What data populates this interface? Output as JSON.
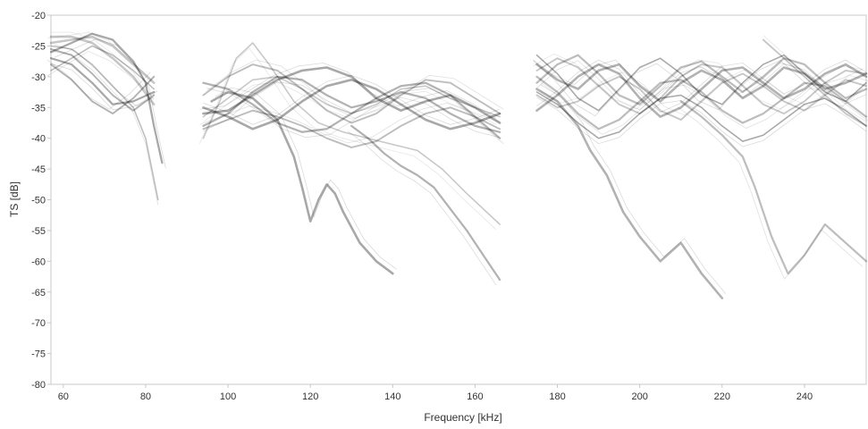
{
  "chart_data": {
    "type": "line",
    "xlabel": "Frequency [kHz]",
    "ylabel": "TS [dB]",
    "xlim": [
      57,
      255
    ],
    "ylim": [
      -80,
      -20
    ],
    "x_ticks": [
      60,
      80,
      100,
      120,
      140,
      160,
      180,
      200,
      220,
      240
    ],
    "y_ticks": [
      -80,
      -75,
      -70,
      -65,
      -60,
      -55,
      -50,
      -45,
      -40,
      -35,
      -30,
      -25,
      -20
    ],
    "x_tick_labels": [
      "60",
      "80",
      "100",
      "120",
      "140",
      "160",
      "180",
      "200",
      "220",
      "240"
    ],
    "y_tick_labels": [
      "-80",
      "-75",
      "-70",
      "-65",
      "-60",
      "-55",
      "-50",
      "-45",
      "-40",
      "-35",
      "-30",
      "-25",
      "-20"
    ],
    "grid": false,
    "colors": {
      "axis": "#c8c8c8",
      "text": "#333333",
      "series": "#000000"
    },
    "bands": [
      {
        "x_range": [
          57,
          84
        ],
        "series": [
          {
            "x": [
              57,
              62,
              67,
              72,
              77,
              82
            ],
            "y": [
              -24.5,
              -24.0,
              -23.5,
              -25.0,
              -28.0,
              -31.0
            ]
          },
          {
            "x": [
              57,
              62,
              67,
              72,
              77,
              82
            ],
            "y": [
              -27.0,
              -28.0,
              -31.0,
              -34.5,
              -34.0,
              -32.5
            ]
          },
          {
            "x": [
              57,
              62,
              67,
              72,
              77,
              82
            ],
            "y": [
              -25.5,
              -26.5,
              -29.5,
              -33.0,
              -35.5,
              -33.0
            ]
          },
          {
            "x": [
              57,
              62,
              67,
              72,
              77,
              82
            ],
            "y": [
              -29.0,
              -27.0,
              -25.0,
              -26.5,
              -29.0,
              -32.0
            ]
          },
          {
            "x": [
              57,
              62,
              67,
              72,
              77,
              82
            ],
            "y": [
              -23.5,
              -23.5,
              -24.5,
              -27.0,
              -30.0,
              -34.5
            ]
          },
          {
            "x": [
              57,
              62,
              67,
              72,
              77,
              80,
              82,
              84
            ],
            "y": [
              -26.0,
              -24.5,
              -23.0,
              -24.0,
              -27.5,
              -31.0,
              -38.0,
              -44.0
            ]
          },
          {
            "x": [
              57,
              62,
              67,
              72,
              77,
              82
            ],
            "y": [
              -28.0,
              -30.5,
              -34.0,
              -36.0,
              -33.5,
              -30.0
            ]
          },
          {
            "x": [
              57,
              62,
              67,
              72,
              77,
              80,
              83
            ],
            "y": [
              -25.0,
              -25.5,
              -28.0,
              -31.5,
              -35.0,
              -40.0,
              -50.0
            ]
          }
        ]
      },
      {
        "x_range": [
          94,
          166
        ],
        "series": [
          {
            "x": [
              94,
              100,
              106,
              112,
              118,
              124,
              130,
              136,
              142,
              148,
              154,
              160,
              166
            ],
            "y": [
              -36.0,
              -35.5,
              -33.0,
              -30.5,
              -29.0,
              -28.5,
              -30.0,
              -33.5,
              -35.5,
              -34.0,
              -33.0,
              -35.0,
              -37.5
            ]
          },
          {
            "x": [
              94,
              100,
              106,
              112,
              118,
              124,
              130,
              136,
              142,
              148,
              154,
              160,
              166
            ],
            "y": [
              -38.0,
              -36.0,
              -32.5,
              -30.0,
              -30.5,
              -33.0,
              -35.0,
              -34.0,
              -32.5,
              -33.5,
              -36.0,
              -38.0,
              -39.0
            ]
          },
          {
            "x": [
              94,
              100,
              106,
              112,
              118,
              124,
              130,
              136,
              142,
              148,
              154,
              160,
              166
            ],
            "y": [
              -33.0,
              -30.0,
              -28.0,
              -29.0,
              -32.0,
              -35.5,
              -37.5,
              -36.0,
              -33.0,
              -30.5,
              -31.0,
              -33.5,
              -36.0
            ]
          },
          {
            "x": [
              94,
              98,
              102,
              106,
              110,
              116,
              122,
              128,
              134,
              140,
              146,
              152,
              158,
              166
            ],
            "y": [
              -40.0,
              -34.0,
              -27.0,
              -24.5,
              -28.0,
              -34.0,
              -37.5,
              -39.0,
              -40.0,
              -41.0,
              -42.0,
              -45.0,
              -49.0,
              -54.0
            ]
          },
          {
            "x": [
              94,
              100,
              106,
              112,
              118,
              124,
              130,
              136,
              142,
              148,
              154,
              160,
              166
            ],
            "y": [
              -35.0,
              -36.5,
              -38.5,
              -37.0,
              -34.0,
              -31.5,
              -30.5,
              -32.0,
              -34.5,
              -37.0,
              -38.5,
              -37.5,
              -36.0
            ]
          },
          {
            "x": [
              94,
              100,
              106,
              112,
              118,
              124,
              130,
              136,
              142,
              148,
              154,
              160,
              166
            ],
            "y": [
              -31.0,
              -32.0,
              -34.5,
              -37.5,
              -39.0,
              -38.5,
              -36.0,
              -33.5,
              -31.5,
              -31.0,
              -33.0,
              -36.5,
              -40.0
            ]
          },
          {
            "x": [
              94,
              100,
              106,
              112,
              118,
              124,
              130,
              136,
              142,
              148,
              154,
              160,
              166
            ],
            "y": [
              -38.5,
              -37.0,
              -35.5,
              -36.5,
              -38.0,
              -40.0,
              -41.5,
              -40.5,
              -38.0,
              -36.0,
              -35.0,
              -36.5,
              -38.5
            ]
          },
          {
            "x": [
              94,
              100,
              106,
              112,
              118,
              124,
              130,
              136,
              142,
              148,
              154,
              160,
              166
            ],
            "y": [
              -36.5,
              -33.5,
              -30.5,
              -30.0,
              -32.0,
              -34.5,
              -36.0,
              -34.5,
              -32.0,
              -31.5,
              -33.5,
              -35.0,
              -36.5
            ]
          },
          {
            "x": [
              96,
              100,
              106,
              112,
              116,
              118,
              120,
              122,
              124,
              126,
              128,
              132,
              136,
              140
            ],
            "y": [
              -34.0,
              -32.5,
              -33.5,
              -37.0,
              -43.0,
              -48.0,
              -53.5,
              -50.0,
              -47.5,
              -49.0,
              -52.0,
              -57.0,
              -60.0,
              -62.0
            ]
          },
          {
            "x": [
              130,
              134,
              138,
              142,
              146,
              150,
              154,
              158,
              162,
              166
            ],
            "y": [
              -38.0,
              -40.0,
              -42.5,
              -44.5,
              -46.0,
              -48.0,
              -51.5,
              -55.0,
              -59.0,
              -63.0
            ]
          }
        ]
      },
      {
        "x_range": [
          175,
          255
        ],
        "series": [
          {
            "x": [
              175,
              180,
              185,
              190,
              195,
              200,
              205,
              210,
              215,
              220,
              225,
              230,
              235,
              240,
              245,
              250,
              255
            ],
            "y": [
              -28.0,
              -30.5,
              -32.0,
              -29.0,
              -28.0,
              -31.5,
              -34.0,
              -31.0,
              -29.0,
              -30.5,
              -33.5,
              -31.5,
              -28.5,
              -29.5,
              -32.0,
              -31.0,
              -29.5
            ]
          },
          {
            "x": [
              175,
              180,
              185,
              190,
              195,
              200,
              205,
              210,
              215,
              220,
              225,
              230,
              235,
              240,
              245,
              250,
              255
            ],
            "y": [
              -31.0,
              -28.0,
              -26.5,
              -29.5,
              -33.0,
              -34.5,
              -31.5,
              -28.5,
              -27.5,
              -30.0,
              -32.5,
              -30.0,
              -27.0,
              -28.0,
              -31.0,
              -33.5,
              -32.0
            ]
          },
          {
            "x": [
              175,
              180,
              185,
              190,
              195,
              200,
              205,
              210,
              215,
              220,
              225,
              230,
              235,
              240,
              245,
              250,
              255
            ],
            "y": [
              -33.0,
              -35.0,
              -34.0,
              -31.5,
              -30.0,
              -32.0,
              -35.5,
              -37.0,
              -34.0,
              -31.0,
              -29.5,
              -31.5,
              -34.0,
              -35.5,
              -33.0,
              -30.5,
              -31.5
            ]
          },
          {
            "x": [
              175,
              180,
              185,
              190,
              195,
              200,
              205,
              210,
              215,
              220,
              225,
              230,
              235,
              240,
              245,
              250,
              255
            ],
            "y": [
              -26.5,
              -29.5,
              -33.5,
              -35.5,
              -32.0,
              -28.5,
              -27.0,
              -29.5,
              -33.0,
              -34.5,
              -31.0,
              -28.0,
              -26.5,
              -29.5,
              -32.5,
              -34.0,
              -31.0
            ]
          },
          {
            "x": [
              175,
              180,
              185,
              190,
              195,
              200,
              205,
              210,
              215,
              220,
              225,
              230,
              235,
              240,
              245,
              250,
              255
            ],
            "y": [
              -35.5,
              -33.0,
              -30.0,
              -28.0,
              -29.5,
              -33.5,
              -36.5,
              -35.0,
              -32.0,
              -29.0,
              -28.5,
              -31.0,
              -33.5,
              -32.0,
              -29.5,
              -28.0,
              -30.0
            ]
          },
          {
            "x": [
              175,
              180,
              185,
              190,
              195,
              200,
              205,
              210,
              215,
              220,
              225,
              230,
              235,
              240,
              245,
              250,
              255
            ],
            "y": [
              -30.0,
              -32.5,
              -36.0,
              -38.5,
              -37.0,
              -34.0,
              -31.0,
              -30.5,
              -32.5,
              -35.5,
              -37.5,
              -36.0,
              -33.5,
              -31.0,
              -31.5,
              -34.0,
              -36.5
            ]
          },
          {
            "x": [
              175,
              180,
              185,
              190,
              195,
              200,
              205,
              210,
              215,
              220,
              225,
              230,
              235,
              240,
              245,
              250,
              255
            ],
            "y": [
              -29.0,
              -27.0,
              -28.5,
              -31.5,
              -34.5,
              -36.0,
              -33.5,
              -30.0,
              -28.0,
              -28.5,
              -31.5,
              -34.5,
              -36.0,
              -34.0,
              -31.0,
              -29.0,
              -29.5
            ]
          },
          {
            "x": [
              175,
              180,
              185,
              190,
              195,
              200,
              205,
              210,
              215,
              220,
              225,
              230,
              235,
              240,
              245,
              250,
              255
            ],
            "y": [
              -32.5,
              -34.5,
              -37.5,
              -40.0,
              -39.0,
              -36.0,
              -33.5,
              -33.0,
              -35.0,
              -38.0,
              -40.5,
              -39.5,
              -37.0,
              -34.5,
              -33.5,
              -35.5,
              -38.0
            ]
          },
          {
            "x": [
              175,
              180,
              185,
              188,
              192,
              196,
              200,
              205,
              210,
              215,
              220
            ],
            "y": [
              -32.0,
              -34.0,
              -38.0,
              -42.0,
              -46.0,
              -52.0,
              -56.0,
              -60.0,
              -57.0,
              -62.0,
              -66.0
            ]
          },
          {
            "x": [
              210,
              215,
              220,
              225,
              228,
              232,
              236,
              240,
              245,
              250,
              255
            ],
            "y": [
              -34.0,
              -36.5,
              -39.5,
              -43.0,
              -48.0,
              -56.0,
              -62.0,
              -59.0,
              -54.0,
              -57.0,
              -60.0
            ]
          },
          {
            "x": [
              230,
              235,
              240,
              245,
              250,
              255
            ],
            "y": [
              -24.0,
              -27.0,
              -30.0,
              -33.0,
              -36.0,
              -38.0
            ]
          }
        ]
      }
    ]
  }
}
